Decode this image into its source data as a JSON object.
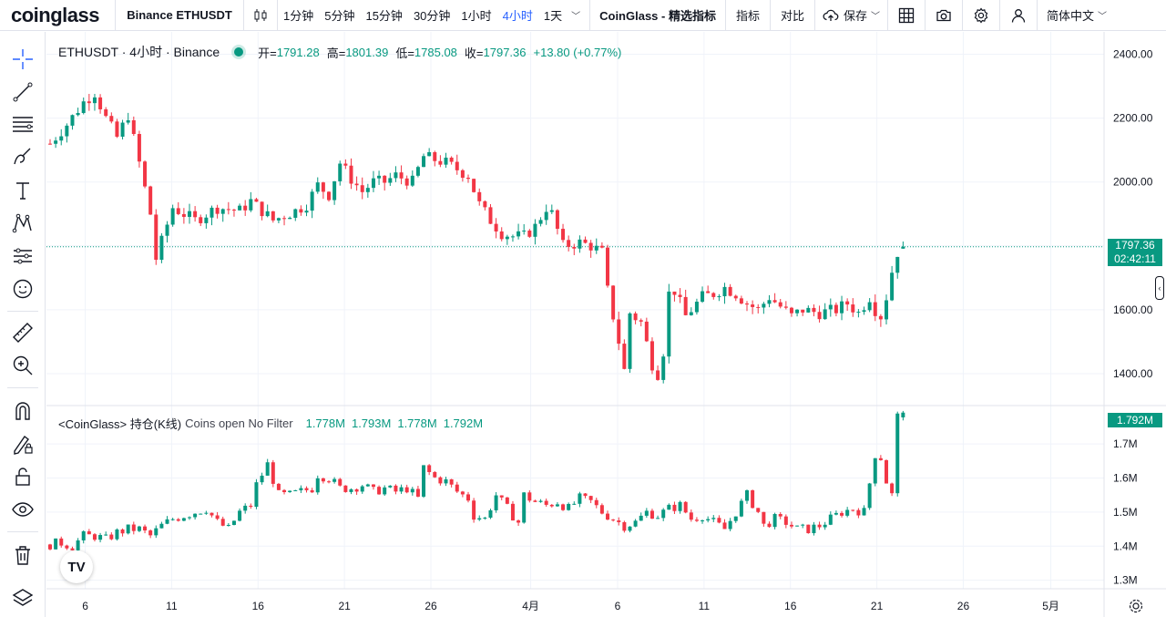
{
  "topbar": {
    "logo": "coinglass",
    "symbol": "Binance ETHUSDT",
    "intervals": [
      "1分钟",
      "5分钟",
      "15分钟",
      "30分钟",
      "1小时",
      "4小时",
      "1天"
    ],
    "active_interval": "4小时",
    "indicator_brand": "CoinGlass - 精选指标",
    "indicators_label": "指标",
    "compare_label": "对比",
    "save_label": "保存",
    "language_label": "简体中文"
  },
  "legend": {
    "symbol_title": "ETHUSDT · 4小时 · Binance",
    "open_label": "开=",
    "open": "1791.28",
    "high_label": "高=",
    "high": "1801.39",
    "low_label": "低=",
    "low": "1785.08",
    "close_label": "收=",
    "close": "1797.36",
    "change": "+13.80 (+0.77%)"
  },
  "indicator_legend": {
    "name": "<CoinGlass> 持仓(K线)",
    "desc": "Coins open No Filter",
    "values": [
      "1.778M",
      "1.793M",
      "1.778M",
      "1.792M"
    ]
  },
  "price_axis": {
    "labels": [
      "2400.00",
      "2200.00",
      "2000.00",
      "1600.00",
      "1400.00"
    ],
    "last_price": "1797.36",
    "countdown": "02:42:11"
  },
  "oi_axis": {
    "labels": [
      "1.7M",
      "1.6M",
      "1.5M",
      "1.4M",
      "1.3M"
    ],
    "last_value": "1.792M"
  },
  "time_axis": {
    "labels": [
      "6",
      "11",
      "16",
      "21",
      "26",
      "4月",
      "6",
      "11",
      "16",
      "21",
      "26",
      "5月"
    ]
  },
  "tv_logo": "TV",
  "colors": {
    "up": "#089981",
    "down": "#f23645",
    "accent": "#2962ff",
    "grid": "#f0f3fa"
  },
  "icons": [
    "crosshair-icon",
    "trend-line-icon",
    "fib-icon",
    "brush-icon",
    "text-icon",
    "pattern-icon",
    "forecast-icon",
    "emoji-icon",
    "ruler-icon",
    "zoom-in-icon",
    "magnet-icon",
    "lock-drawing-icon",
    "lock-icon",
    "eye-icon",
    "trash-icon",
    "layers-icon"
  ],
  "chart_data": {
    "type": "candlestick",
    "symbol": "ETHUSDT",
    "exchange": "Binance",
    "interval": "4小时",
    "price_anchors": [
      [
        0,
        2120
      ],
      [
        3,
        2180
      ],
      [
        6,
        2250
      ],
      [
        8,
        2280
      ],
      [
        10,
        2200
      ],
      [
        12,
        2140
      ],
      [
        14,
        2210
      ],
      [
        16,
        2060
      ],
      [
        18,
        1900
      ],
      [
        19,
        1760
      ],
      [
        22,
        1920
      ],
      [
        26,
        1880
      ],
      [
        30,
        1920
      ],
      [
        34,
        1910
      ],
      [
        36,
        1940
      ],
      [
        40,
        1880
      ],
      [
        44,
        1910
      ],
      [
        46,
        1930
      ],
      [
        48,
        1990
      ],
      [
        50,
        1960
      ],
      [
        52,
        2060
      ],
      [
        54,
        2010
      ],
      [
        56,
        1970
      ],
      [
        58,
        2000
      ],
      [
        60,
        2000
      ],
      [
        62,
        2020
      ],
      [
        65,
        2000
      ],
      [
        67,
        2080
      ],
      [
        69,
        2070
      ],
      [
        71,
        2060
      ],
      [
        73,
        2040
      ],
      [
        75,
        2020
      ],
      [
        77,
        1930
      ],
      [
        79,
        1880
      ],
      [
        81,
        1840
      ],
      [
        83,
        1830
      ],
      [
        85,
        1830
      ],
      [
        87,
        1860
      ],
      [
        89,
        1920
      ],
      [
        90,
        1900
      ],
      [
        92,
        1800
      ],
      [
        95,
        1810
      ],
      [
        97,
        1800
      ],
      [
        99,
        1780
      ],
      [
        100,
        1660
      ],
      [
        102,
        1500
      ],
      [
        103,
        1410
      ],
      [
        104,
        1590
      ],
      [
        106,
        1560
      ],
      [
        108,
        1430
      ],
      [
        109,
        1400
      ],
      [
        110,
        1470
      ],
      [
        111,
        1650
      ],
      [
        112,
        1660
      ],
      [
        114,
        1580
      ],
      [
        117,
        1640
      ],
      [
        119,
        1650
      ],
      [
        121,
        1670
      ],
      [
        123,
        1650
      ],
      [
        125,
        1620
      ],
      [
        127,
        1600
      ],
      [
        129,
        1640
      ],
      [
        131,
        1610
      ],
      [
        133,
        1580
      ],
      [
        135,
        1600
      ],
      [
        138,
        1590
      ],
      [
        141,
        1600
      ],
      [
        143,
        1620
      ],
      [
        145,
        1590
      ],
      [
        147,
        1640
      ],
      [
        148,
        1600
      ],
      [
        149,
        1580
      ],
      [
        150,
        1640
      ],
      [
        151,
        1720
      ],
      [
        152,
        1780
      ],
      [
        153,
        1797
      ]
    ],
    "oi_anchors": [
      [
        0,
        1.405
      ],
      [
        2,
        1.41
      ],
      [
        4,
        1.4
      ],
      [
        6,
        1.43
      ],
      [
        8,
        1.43
      ],
      [
        10,
        1.42
      ],
      [
        12,
        1.44
      ],
      [
        14,
        1.45
      ],
      [
        16,
        1.45
      ],
      [
        18,
        1.43
      ],
      [
        20,
        1.46
      ],
      [
        22,
        1.48
      ],
      [
        24,
        1.49
      ],
      [
        26,
        1.5
      ],
      [
        28,
        1.51
      ],
      [
        30,
        1.47
      ],
      [
        32,
        1.45
      ],
      [
        34,
        1.5
      ],
      [
        36,
        1.52
      ],
      [
        37,
        1.58
      ],
      [
        39,
        1.64
      ],
      [
        41,
        1.55
      ],
      [
        43,
        1.55
      ],
      [
        45,
        1.56
      ],
      [
        47,
        1.57
      ],
      [
        48,
        1.61
      ],
      [
        50,
        1.6
      ],
      [
        52,
        1.57
      ],
      [
        54,
        1.57
      ],
      [
        56,
        1.58
      ],
      [
        58,
        1.56
      ],
      [
        60,
        1.57
      ],
      [
        62,
        1.56
      ],
      [
        64,
        1.57
      ],
      [
        66,
        1.54
      ],
      [
        67,
        1.63
      ],
      [
        69,
        1.6
      ],
      [
        71,
        1.59
      ],
      [
        73,
        1.56
      ],
      [
        75,
        1.54
      ],
      [
        76,
        1.49
      ],
      [
        78,
        1.48
      ],
      [
        80,
        1.55
      ],
      [
        82,
        1.51
      ],
      [
        84,
        1.47
      ],
      [
        85,
        1.55
      ],
      [
        87,
        1.53
      ],
      [
        89,
        1.52
      ],
      [
        91,
        1.53
      ],
      [
        93,
        1.51
      ],
      [
        95,
        1.54
      ],
      [
        97,
        1.53
      ],
      [
        99,
        1.5
      ],
      [
        101,
        1.48
      ],
      [
        103,
        1.46
      ],
      [
        105,
        1.47
      ],
      [
        107,
        1.5
      ],
      [
        109,
        1.49
      ],
      [
        111,
        1.51
      ],
      [
        113,
        1.52
      ],
      [
        115,
        1.48
      ],
      [
        117,
        1.49
      ],
      [
        119,
        1.47
      ],
      [
        121,
        1.45
      ],
      [
        123,
        1.5
      ],
      [
        125,
        1.55
      ],
      [
        127,
        1.5
      ],
      [
        128,
        1.46
      ],
      [
        130,
        1.48
      ],
      [
        132,
        1.47
      ],
      [
        134,
        1.45
      ],
      [
        136,
        1.45
      ],
      [
        138,
        1.46
      ],
      [
        140,
        1.48
      ],
      [
        142,
        1.5
      ],
      [
        144,
        1.51
      ],
      [
        146,
        1.5
      ],
      [
        148,
        1.67
      ],
      [
        149,
        1.66
      ],
      [
        150,
        1.59
      ],
      [
        151,
        1.55
      ],
      [
        152,
        1.78
      ],
      [
        153,
        1.792
      ]
    ],
    "candle_count": 154,
    "price_ylim": [
      1300,
      2470
    ],
    "oi_ylim": [
      1.275,
      1.81
    ]
  }
}
